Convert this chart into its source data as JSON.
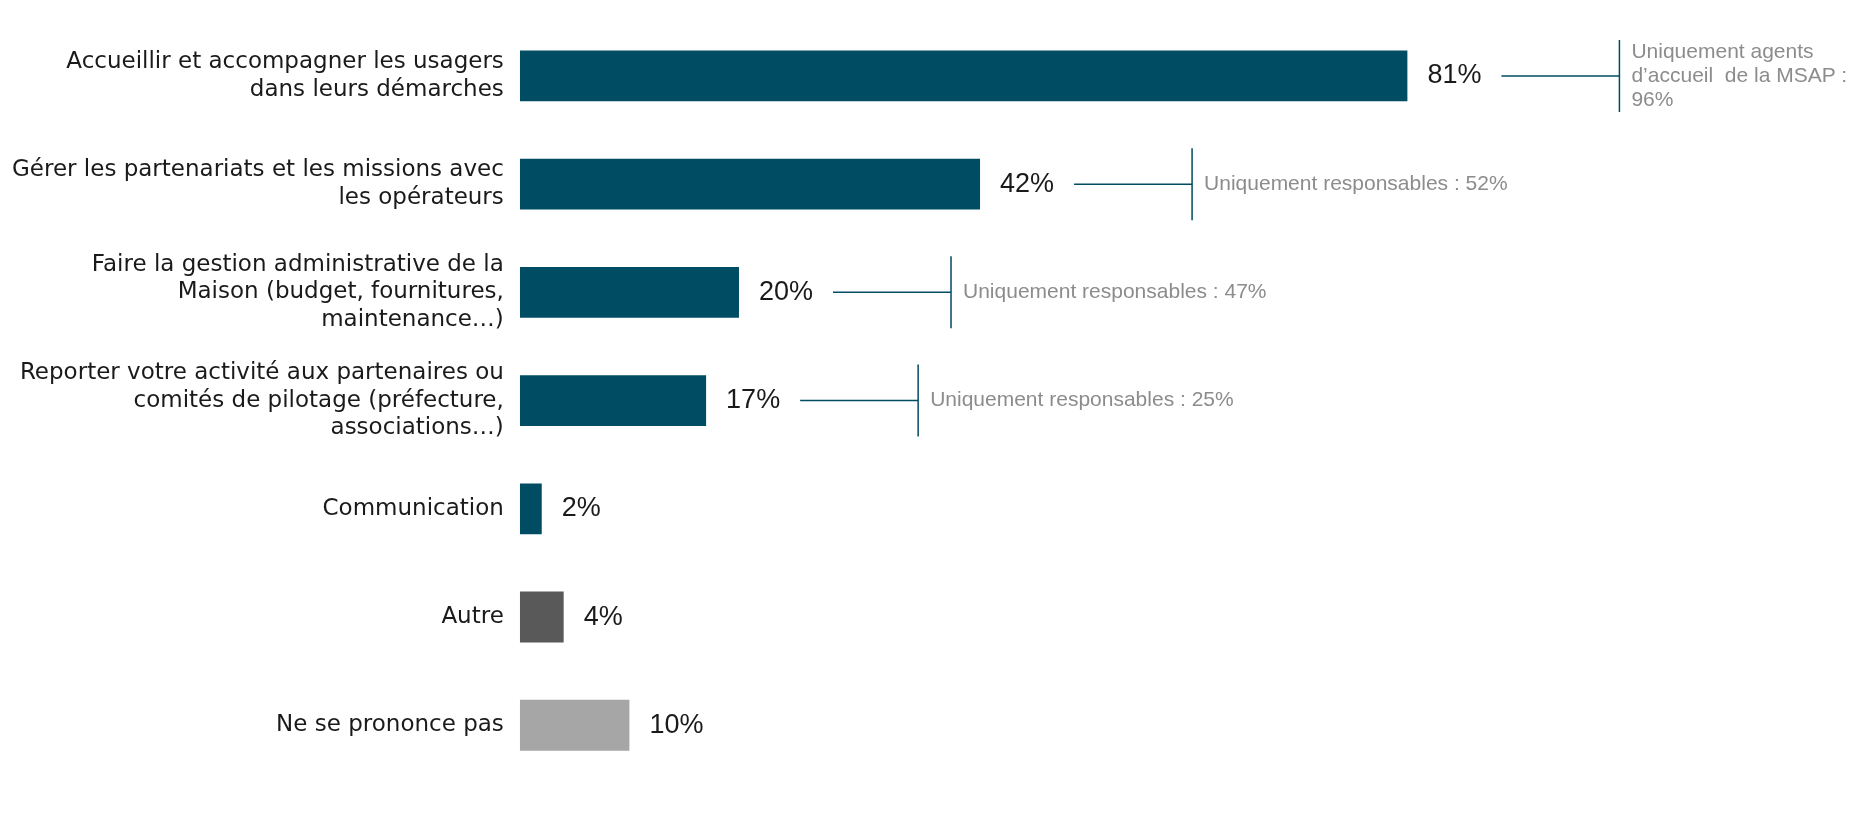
{
  "chart_data": {
    "type": "bar",
    "orientation": "horizontal",
    "categories": [
      "Accueillir et accompagner les usagers dans leurs démarches",
      "Gérer les partenariats et les missions avec les opérateurs",
      "Faire la gestion administrative de la Maison (budget, fournitures, maintenance…)",
      "Reporter votre activité aux partenaires ou comités de pilotage (préfecture, associations…)",
      "Communication",
      "Autre",
      "Ne se prononce pas"
    ],
    "values": [
      81,
      42,
      20,
      17,
      2,
      4,
      10
    ],
    "colors": [
      "#004c63",
      "#004c63",
      "#004c63",
      "#004c63",
      "#004c63",
      "#595959",
      "#a6a6a6"
    ],
    "value_labels": [
      "81%",
      "42%",
      "20%",
      "17%",
      "2%",
      "4%",
      "10%"
    ],
    "tick_labels": "y",
    "annotations": [
      "Uniquement agents d’accueil  de la MSAP : 96%",
      "Uniquement responsables : 52%",
      "Uniquement responsables : 47%",
      "Uniquement responsables : 25%"
    ]
  }
}
